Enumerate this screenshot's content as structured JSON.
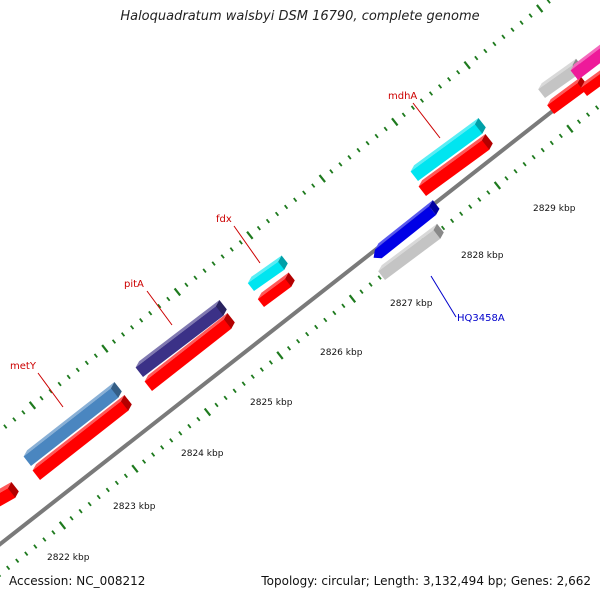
{
  "title": "Haloquadratum walsbyi DSM 16790, complete genome",
  "footer": {
    "accession": "Accession: NC_008212",
    "stats": "Topology: circular; Length: 3,132,494 bp; Genes: 2,662"
  },
  "colors": {
    "background": "#ffffff",
    "backbone": "#7a7a7a",
    "tick": "#1e7a1e",
    "cds": "#ff0000",
    "label_forward": "#cc0000",
    "label_reverse": "#0000cc"
  },
  "chart_data": {
    "type": "diagram",
    "view": "zoomed linear section of circular genome map",
    "position_labels": [
      "2822 kbp",
      "2823 kbp",
      "2824 kbp",
      "2825 kbp",
      "2826 kbp",
      "2827 kbp",
      "2828 kbp",
      "2829 kbp"
    ],
    "labeled_genes": [
      {
        "name": "metY",
        "strand": "forward",
        "color": "#4a86c0"
      },
      {
        "name": "pitA",
        "strand": "forward",
        "color": "#3b3187"
      },
      {
        "name": "fdx",
        "strand": "forward",
        "color": "#00e5f0"
      },
      {
        "name": "mdhA",
        "strand": "forward",
        "color": "#00e5f0"
      },
      {
        "name": "HQ3458A",
        "strand": "reverse",
        "color": "#0000e6"
      }
    ]
  }
}
